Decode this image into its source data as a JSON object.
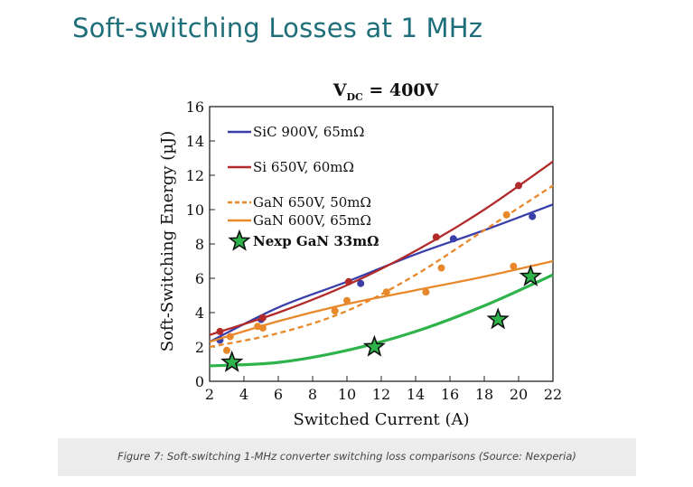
{
  "page": {
    "title": "Soft-switching Losses at 1 MHz",
    "caption": "Figure 7: Soft-switching 1-MHz converter switching loss comparisons (Source: Nexperia)"
  },
  "chart_data": {
    "type": "line",
    "title": "V",
    "title_subscript": "DC",
    "title_suffix": " = 400V",
    "xlabel": "Switched Current (A)",
    "ylabel": "Soft-Switching Energy (µJ)",
    "xlim": [
      2,
      22
    ],
    "ylim": [
      0,
      16
    ],
    "xticks": [
      2,
      4,
      6,
      8,
      10,
      12,
      14,
      16,
      18,
      20,
      22
    ],
    "yticks": [
      0,
      2,
      4,
      6,
      8,
      10,
      12,
      14,
      16
    ],
    "grid": false,
    "legend_position": "top-left",
    "series": [
      {
        "name": "SiC  900V, 65mΩ",
        "color": "#3a3ea8",
        "style": "solid",
        "fit": {
          "x": [
            2,
            6,
            10,
            14,
            18,
            22
          ],
          "y": [
            2.3,
            4.3,
            5.8,
            7.4,
            8.8,
            10.3
          ]
        },
        "points": {
          "x": [
            2.6,
            5.0,
            10.8,
            16.2,
            20.8
          ],
          "y": [
            2.4,
            3.6,
            5.7,
            8.3,
            9.6
          ]
        }
      },
      {
        "name": "Si    650V, 60mΩ",
        "color": "#b22a2a",
        "style": "solid",
        "fit": {
          "x": [
            2,
            6,
            10,
            14,
            18,
            22
          ],
          "y": [
            2.7,
            4.0,
            5.6,
            7.6,
            10.0,
            12.8
          ]
        },
        "points": {
          "x": [
            2.6,
            5.1,
            10.1,
            15.2,
            20.0
          ],
          "y": [
            2.9,
            3.7,
            5.8,
            8.4,
            11.4
          ]
        }
      },
      {
        "name": "GaN 650V, 50mΩ",
        "color": "#e8882a",
        "style": "dashed",
        "fit": {
          "x": [
            2,
            6,
            10,
            14,
            18,
            22
          ],
          "y": [
            2.0,
            2.8,
            4.1,
            6.2,
            8.8,
            11.4
          ]
        },
        "points": {
          "x": [
            3.0,
            5.1,
            9.3,
            15.5,
            19.3
          ],
          "y": [
            1.8,
            3.1,
            4.1,
            6.6,
            9.7
          ]
        }
      },
      {
        "name": "GaN 600V, 65mΩ",
        "color": "#e8882a",
        "style": "solid",
        "fit": {
          "x": [
            2,
            6,
            10,
            14,
            18,
            22
          ],
          "y": [
            2.3,
            3.5,
            4.5,
            5.3,
            6.1,
            7.0
          ]
        },
        "points": {
          "x": [
            3.2,
            4.8,
            10.0,
            12.3,
            14.6,
            19.7
          ],
          "y": [
            2.6,
            3.2,
            4.7,
            5.2,
            5.2,
            6.7
          ]
        }
      },
      {
        "name": "Nexp GaN 33mΩ",
        "color": "#2db34a",
        "style": "solid",
        "fit": {
          "x": [
            2,
            6,
            10,
            14,
            18,
            22
          ],
          "y": [
            0.9,
            1.1,
            1.8,
            2.9,
            4.4,
            6.2
          ]
        },
        "points": {
          "x": [
            3.3,
            11.6,
            18.8,
            20.7
          ],
          "y": [
            1.1,
            2.0,
            3.6,
            6.1
          ]
        }
      }
    ]
  }
}
